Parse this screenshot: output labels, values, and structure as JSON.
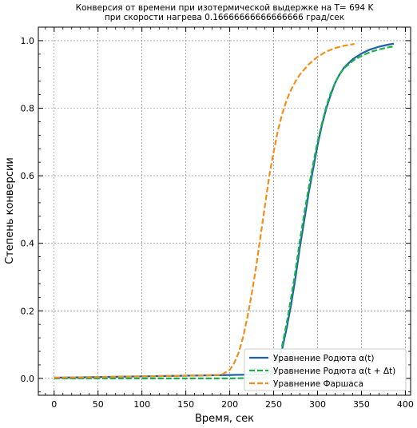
{
  "chart_data": {
    "type": "line",
    "title_line1": "Конверсия от времени при изотермической выдержке на T= 694 K",
    "title_line2": "при скорости нагрева 0.16666666666666666 град/сек",
    "xlabel": "Время, сек",
    "ylabel": "Степень конверсии",
    "xlim": [
      -18,
      406
    ],
    "ylim": [
      -0.05,
      1.04
    ],
    "xticks": [
      0,
      50,
      100,
      150,
      200,
      250,
      300,
      350,
      400
    ],
    "yticks": [
      0.0,
      0.2,
      0.4,
      0.6,
      0.8,
      1.0
    ],
    "grid": true,
    "legend_position": "lower-right",
    "series": [
      {
        "name": "Уравнение Родюта α(t)",
        "color": "#1f5fa8",
        "style": "solid",
        "x": [
          0,
          50,
          100,
          150,
          200,
          240,
          250,
          255,
          260,
          265,
          270,
          275,
          280,
          285,
          290,
          295,
          300,
          305,
          310,
          315,
          320,
          325,
          330,
          340,
          350,
          360,
          370,
          380,
          387
        ],
        "y": [
          0.002,
          0.004,
          0.006,
          0.008,
          0.01,
          0.012,
          0.025,
          0.05,
          0.09,
          0.15,
          0.22,
          0.3,
          0.39,
          0.47,
          0.55,
          0.62,
          0.69,
          0.75,
          0.8,
          0.84,
          0.875,
          0.9,
          0.92,
          0.945,
          0.962,
          0.974,
          0.982,
          0.988,
          0.991
        ]
      },
      {
        "name": "Уравнение Родюта α(t + Δt)",
        "color": "#17b34a",
        "style": "dashed",
        "x": [
          0,
          50,
          100,
          150,
          200,
          240,
          250,
          255,
          260,
          265,
          270,
          275,
          280,
          285,
          290,
          295,
          300,
          305,
          310,
          315,
          320,
          325,
          330,
          340,
          350,
          360,
          370,
          380,
          387
        ],
        "y": [
          0.0,
          0.0,
          0.0,
          0.0,
          0.0,
          0.002,
          0.02,
          0.055,
          0.1,
          0.165,
          0.24,
          0.32,
          0.41,
          0.49,
          0.565,
          0.635,
          0.7,
          0.755,
          0.805,
          0.845,
          0.875,
          0.9,
          0.918,
          0.94,
          0.955,
          0.966,
          0.974,
          0.98,
          0.983
        ]
      },
      {
        "name": "Уравнение Фаршаса",
        "color": "#f28e1c",
        "style": "dashed",
        "x": [
          0,
          50,
          100,
          150,
          190,
          200,
          205,
          210,
          215,
          220,
          225,
          230,
          235,
          240,
          245,
          250,
          255,
          260,
          265,
          270,
          275,
          280,
          290,
          300,
          310,
          320,
          330,
          342
        ],
        "y": [
          0.002,
          0.004,
          0.006,
          0.008,
          0.01,
          0.025,
          0.045,
          0.075,
          0.12,
          0.18,
          0.25,
          0.33,
          0.42,
          0.51,
          0.6,
          0.67,
          0.735,
          0.785,
          0.825,
          0.855,
          0.88,
          0.9,
          0.93,
          0.952,
          0.968,
          0.978,
          0.985,
          0.99
        ]
      }
    ]
  }
}
